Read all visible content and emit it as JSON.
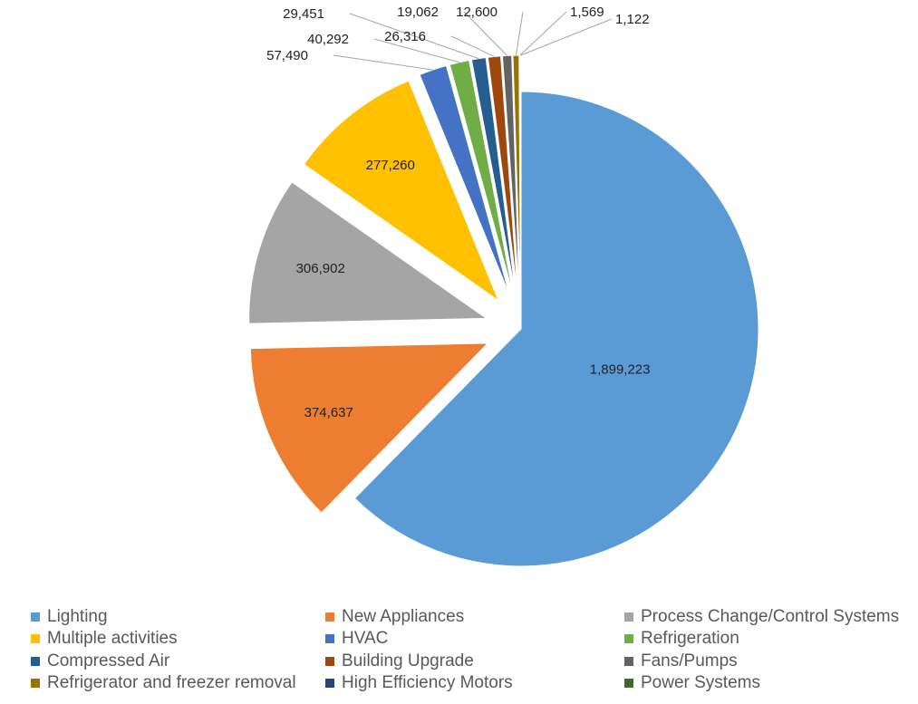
{
  "chart_data": {
    "type": "pie",
    "title": "",
    "legend_position": "bottom",
    "slices": [
      {
        "name": "Lighting",
        "value": 1899223,
        "label": "1,899,223",
        "color": "#5B9BD5"
      },
      {
        "name": "New Appliances",
        "value": 374637,
        "label": "374,637",
        "color": "#ED7D31"
      },
      {
        "name": "Process Change/Control Systems",
        "value": 306902,
        "label": "306,902",
        "color": "#A5A5A5"
      },
      {
        "name": "Multiple activities",
        "value": 277260,
        "label": "277,260",
        "color": "#FFC000"
      },
      {
        "name": "HVAC",
        "value": 57490,
        "label": "57,490",
        "color": "#4472C4"
      },
      {
        "name": "Refrigeration",
        "value": 40292,
        "label": "40,292",
        "color": "#70AD47"
      },
      {
        "name": "Compressed Air",
        "value": 29451,
        "label": "29,451",
        "color": "#255E91"
      },
      {
        "name": "Building Upgrade",
        "value": 26316,
        "label": "26,316",
        "color": "#9E480E"
      },
      {
        "name": "Fans/Pumps",
        "value": 19062,
        "label": "19,062",
        "color": "#636363"
      },
      {
        "name": "Refrigerator and freezer removal",
        "value": 12600,
        "label": "12,600",
        "color": "#997300"
      },
      {
        "name": "High Efficiency Motors",
        "value": 1569,
        "label": "1,569",
        "color": "#264478"
      },
      {
        "name": "Power Systems",
        "value": 1122,
        "label": "1,122",
        "color": "#43682B"
      }
    ]
  }
}
